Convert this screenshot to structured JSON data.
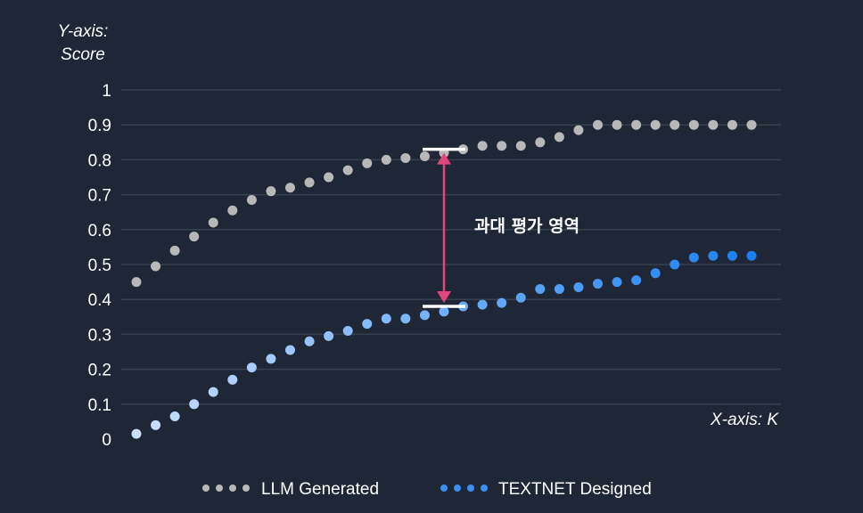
{
  "chart_data": {
    "type": "scatter",
    "ylabel_line1": "Y-axis:",
    "ylabel_line2": "Score",
    "xlabel": "X-axis: K",
    "ylim": [
      0,
      1
    ],
    "yticks": [
      "0",
      "0.1",
      "0.2",
      "0.3",
      "0.4",
      "0.5",
      "0.6",
      "0.7",
      "0.8",
      "0.9",
      "1"
    ],
    "grid": true,
    "legend_position": "bottom-center",
    "annotation": {
      "label": "과대 평가 영역",
      "x_index": 16,
      "y_top": 0.83,
      "y_bottom": 0.38,
      "color": "#e0457b"
    },
    "series": [
      {
        "name": "LLM Generated",
        "color": "#b8b8b8",
        "values": [
          0.45,
          0.495,
          0.54,
          0.58,
          0.62,
          0.655,
          0.685,
          0.71,
          0.72,
          0.735,
          0.75,
          0.77,
          0.79,
          0.8,
          0.805,
          0.81,
          0.82,
          0.83,
          0.84,
          0.84,
          0.84,
          0.85,
          0.865,
          0.885,
          0.9,
          0.9,
          0.9,
          0.9,
          0.9,
          0.9,
          0.9,
          0.9,
          0.9
        ]
      },
      {
        "name": "TEXTNET Designed",
        "color_start": "#c9defd",
        "color_end": "#1a7ff2",
        "values": [
          0.015,
          0.04,
          0.065,
          0.1,
          0.135,
          0.17,
          0.205,
          0.23,
          0.255,
          0.28,
          0.295,
          0.31,
          0.33,
          0.345,
          0.345,
          0.355,
          0.365,
          0.38,
          0.385,
          0.39,
          0.405,
          0.43,
          0.43,
          0.435,
          0.445,
          0.45,
          0.455,
          0.475,
          0.5,
          0.52,
          0.525,
          0.525,
          0.525
        ]
      }
    ]
  }
}
